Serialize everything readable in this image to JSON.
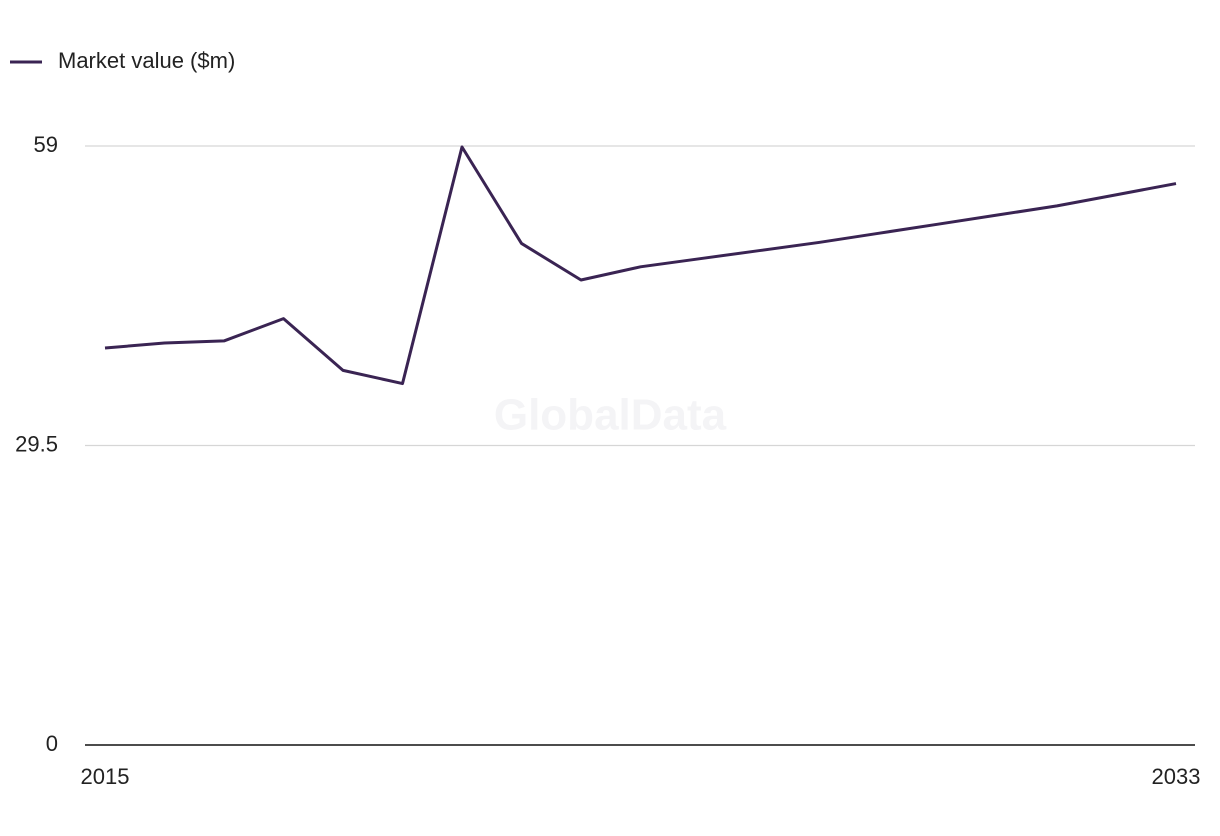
{
  "chart_data": {
    "type": "line",
    "watermark": "GlobalData",
    "x": [
      2015,
      2016,
      2017,
      2018,
      2019,
      2020,
      2021,
      2022,
      2023,
      2024,
      2025,
      2026,
      2027,
      2028,
      2029,
      2030,
      2031,
      2032,
      2033
    ],
    "series": [
      {
        "name": "Market value ($m)",
        "color": "#3a2453",
        "values": [
          39.1,
          39.6,
          39.8,
          42.0,
          36.9,
          35.6,
          58.9,
          49.4,
          45.8,
          47.1,
          47.9,
          48.7,
          49.5,
          50.4,
          51.3,
          52.2,
          53.1,
          54.2,
          55.3
        ]
      }
    ],
    "xlim": [
      2015,
      2033
    ],
    "xticks": [
      2015,
      2033
    ],
    "ylim": [
      0,
      59
    ],
    "yticks": [
      0,
      29.5,
      59
    ],
    "grid": true,
    "legend": "top-left"
  }
}
